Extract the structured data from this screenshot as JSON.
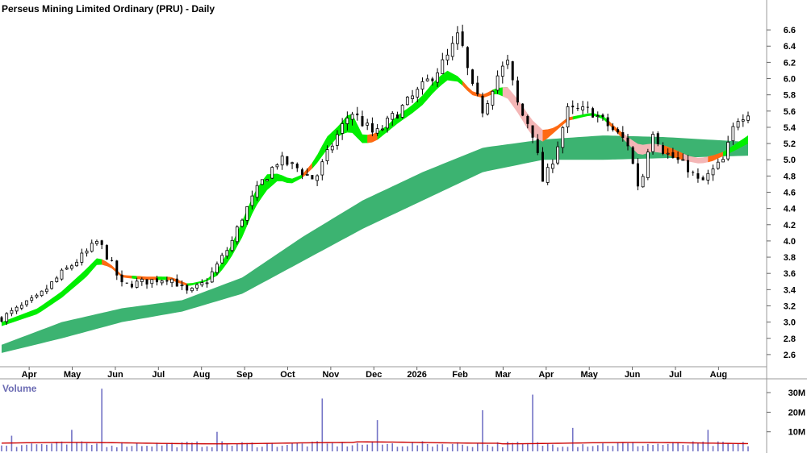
{
  "chart_data": [
    {
      "type": "candlestick",
      "title": "Perseus Mining Limited Ordinary (PRU) - Daily",
      "ylim": [
        2.45,
        6.75
      ],
      "y_ticks": [
        2.6,
        2.8,
        3.0,
        3.2,
        3.4,
        3.6,
        3.8,
        4.0,
        4.2,
        4.4,
        4.6,
        4.8,
        5.0,
        5.2,
        5.4,
        5.6,
        5.8,
        6.0,
        6.2,
        6.4,
        6.6
      ],
      "x_tick_labels": [
        "Apr",
        "May",
        "Jun",
        "Jul",
        "Aug",
        "Sep",
        "Oct",
        "Nov",
        "Dec",
        "2026",
        "Feb",
        "Mar",
        "Apr",
        "May",
        "Jun",
        "Jul",
        "Aug"
      ],
      "colors": {
        "candle": "#000000",
        "short_band_up": "#00ee00",
        "short_band_down": "#ff6a13",
        "short_band_transition": "#f4b6b6",
        "long_band": "#3cb371"
      },
      "price_path": [
        [
          0,
          3.05
        ],
        [
          6,
          3.3
        ],
        [
          10,
          3.6
        ],
        [
          14,
          3.85
        ],
        [
          16,
          4.0
        ],
        [
          18,
          3.75
        ],
        [
          20,
          3.45
        ],
        [
          24,
          3.5
        ],
        [
          28,
          3.55
        ],
        [
          31,
          3.35
        ],
        [
          34,
          3.5
        ],
        [
          38,
          3.95
        ],
        [
          40,
          4.3
        ],
        [
          43,
          4.7
        ],
        [
          46,
          5.0
        ],
        [
          49,
          4.9
        ],
        [
          52,
          4.75
        ],
        [
          55,
          5.2
        ],
        [
          58,
          5.6
        ],
        [
          62,
          5.3
        ],
        [
          66,
          5.6
        ],
        [
          70,
          5.9
        ],
        [
          74,
          6.25
        ],
        [
          76,
          6.55
        ],
        [
          78,
          5.9
        ],
        [
          80,
          5.6
        ],
        [
          82,
          6.0
        ],
        [
          84,
          6.2
        ],
        [
          86,
          5.6
        ],
        [
          88,
          5.4
        ],
        [
          90,
          4.7
        ],
        [
          92,
          5.1
        ],
        [
          94,
          5.6
        ],
        [
          98,
          5.6
        ],
        [
          101,
          5.4
        ],
        [
          104,
          5.2
        ],
        [
          106,
          4.6
        ],
        [
          108,
          5.4
        ],
        [
          110,
          5.1
        ],
        [
          114,
          4.9
        ],
        [
          116,
          4.7
        ],
        [
          118,
          4.85
        ],
        [
          120,
          5.0
        ],
        [
          122,
          5.5
        ],
        [
          124,
          5.6
        ]
      ],
      "short_band": [
        [
          0,
          2.95,
          3.0
        ],
        [
          6,
          3.1,
          3.17
        ],
        [
          10,
          3.3,
          3.38
        ],
        [
          14,
          3.55,
          3.65
        ],
        [
          16,
          3.72,
          3.8
        ],
        [
          18,
          3.68,
          3.72
        ],
        [
          20,
          3.55,
          3.58
        ],
        [
          24,
          3.52,
          3.56
        ],
        [
          28,
          3.52,
          3.56
        ],
        [
          31,
          3.44,
          3.47
        ],
        [
          34,
          3.5,
          3.52
        ],
        [
          36,
          3.58,
          3.66
        ],
        [
          38,
          3.78,
          3.92
        ],
        [
          40,
          4.05,
          4.25
        ],
        [
          42,
          4.4,
          4.6
        ],
        [
          44,
          4.62,
          4.82
        ],
        [
          46,
          4.75,
          4.83
        ],
        [
          48,
          4.7,
          4.76
        ],
        [
          50,
          4.78,
          4.82
        ],
        [
          52,
          4.92,
          5.0
        ],
        [
          54,
          5.12,
          5.28
        ],
        [
          56,
          5.3,
          5.42
        ],
        [
          58,
          5.35,
          5.6
        ],
        [
          60,
          5.2,
          5.3
        ],
        [
          62,
          5.22,
          5.32
        ],
        [
          64,
          5.34,
          5.42
        ],
        [
          66,
          5.46,
          5.56
        ],
        [
          68,
          5.56,
          5.66
        ],
        [
          70,
          5.68,
          5.8
        ],
        [
          72,
          5.85,
          5.98
        ],
        [
          74,
          5.98,
          6.1
        ],
        [
          76,
          5.96,
          6.02
        ],
        [
          78,
          5.8,
          5.85
        ],
        [
          80,
          5.76,
          5.8
        ],
        [
          82,
          5.82,
          5.88
        ],
        [
          84,
          5.76,
          5.9
        ],
        [
          86,
          5.55,
          5.72
        ],
        [
          88,
          5.3,
          5.5
        ],
        [
          90,
          5.22,
          5.36
        ],
        [
          92,
          5.35,
          5.4
        ],
        [
          94,
          5.48,
          5.52
        ],
        [
          98,
          5.55,
          5.58
        ],
        [
          100,
          5.5,
          5.54
        ],
        [
          102,
          5.35,
          5.4
        ],
        [
          104,
          5.2,
          5.28
        ],
        [
          106,
          5.05,
          5.18
        ],
        [
          108,
          5.1,
          5.2
        ],
        [
          110,
          5.08,
          5.18
        ],
        [
          112,
          5.02,
          5.12
        ],
        [
          114,
          4.98,
          5.05
        ],
        [
          116,
          4.95,
          5.02
        ],
        [
          118,
          4.98,
          5.05
        ],
        [
          120,
          5.05,
          5.1
        ],
        [
          122,
          5.12,
          5.2
        ],
        [
          124,
          5.2,
          5.3
        ]
      ],
      "long_band": [
        [
          0,
          2.62,
          2.72
        ],
        [
          10,
          2.8,
          3.0
        ],
        [
          20,
          3.0,
          3.17
        ],
        [
          30,
          3.13,
          3.27
        ],
        [
          40,
          3.35,
          3.55
        ],
        [
          50,
          3.75,
          4.05
        ],
        [
          60,
          4.15,
          4.5
        ],
        [
          70,
          4.5,
          4.85
        ],
        [
          80,
          4.85,
          5.15
        ],
        [
          90,
          5.0,
          5.25
        ],
        [
          100,
          5.0,
          5.3
        ],
        [
          110,
          5.02,
          5.28
        ],
        [
          124,
          5.05,
          5.22
        ]
      ],
      "trend_segments": [
        [
          0,
          17,
          "up"
        ],
        [
          17,
          22,
          "down"
        ],
        [
          22,
          23,
          "up"
        ],
        [
          23,
          26,
          "down"
        ],
        [
          26,
          28,
          "up"
        ],
        [
          28,
          31,
          "down"
        ],
        [
          31,
          50,
          "up"
        ],
        [
          50,
          52,
          "down"
        ],
        [
          52,
          61,
          "up"
        ],
        [
          61,
          63,
          "down"
        ],
        [
          63,
          77,
          "up"
        ],
        [
          77,
          82,
          "down"
        ],
        [
          82,
          84,
          "up"
        ],
        [
          84,
          90,
          "transition"
        ],
        [
          90,
          95,
          "down"
        ],
        [
          95,
          101,
          "up"
        ],
        [
          101,
          104,
          "down"
        ],
        [
          104,
          110,
          "transition"
        ],
        [
          110,
          114,
          "down"
        ],
        [
          114,
          118,
          "transition"
        ],
        [
          118,
          120,
          "down"
        ],
        [
          120,
          124,
          "up"
        ]
      ]
    },
    {
      "type": "bar",
      "title": "Volume",
      "ylim": [
        0,
        35
      ],
      "y_ticks": [
        10,
        20,
        30
      ],
      "y_tick_labels": [
        "10M",
        "20M",
        "30M"
      ],
      "colors": {
        "bars": "#7373c6",
        "average": "#cc0000"
      },
      "average_level": 4.2,
      "volume_spikes": [
        [
          2,
          8
        ],
        [
          12,
          11
        ],
        [
          17,
          32
        ],
        [
          36,
          10
        ],
        [
          53,
          27
        ],
        [
          62,
          16
        ],
        [
          80,
          21
        ],
        [
          88,
          29
        ],
        [
          95,
          12
        ],
        [
          117,
          11
        ]
      ]
    }
  ]
}
